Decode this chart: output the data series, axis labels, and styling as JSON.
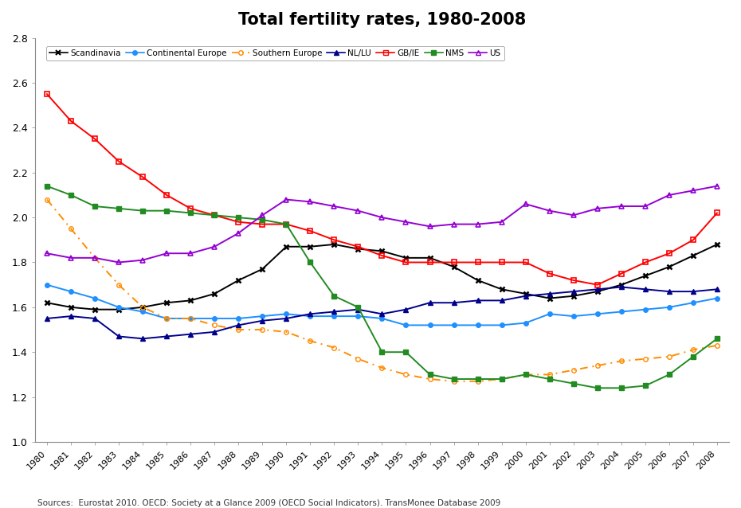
{
  "title": "Total fertility rates, 1980-2008",
  "years": [
    1980,
    1981,
    1982,
    1983,
    1984,
    1985,
    1986,
    1987,
    1988,
    1989,
    1990,
    1991,
    1992,
    1993,
    1994,
    1995,
    1996,
    1997,
    1998,
    1999,
    2000,
    2001,
    2002,
    2003,
    2004,
    2005,
    2006,
    2007,
    2008
  ],
  "series_order": [
    "Scandinavia",
    "Continental Europe",
    "Southern Europe",
    "NL/LU",
    "GB/IE",
    "NMS",
    "US"
  ],
  "series": {
    "Scandinavia": [
      1.62,
      1.6,
      1.59,
      1.59,
      1.6,
      1.62,
      1.63,
      1.66,
      1.72,
      1.77,
      1.87,
      1.87,
      1.88,
      1.86,
      1.85,
      1.82,
      1.82,
      1.78,
      1.72,
      1.68,
      1.66,
      1.64,
      1.65,
      1.67,
      1.7,
      1.74,
      1.78,
      1.83,
      1.88
    ],
    "Continental Europe": [
      1.7,
      1.67,
      1.64,
      1.6,
      1.58,
      1.55,
      1.55,
      1.55,
      1.55,
      1.56,
      1.57,
      1.56,
      1.56,
      1.56,
      1.55,
      1.52,
      1.52,
      1.52,
      1.52,
      1.52,
      1.53,
      1.57,
      1.56,
      1.57,
      1.58,
      1.59,
      1.6,
      1.62,
      1.64
    ],
    "Southern Europe": [
      2.08,
      1.95,
      1.82,
      1.7,
      1.6,
      1.55,
      1.55,
      1.52,
      1.5,
      1.5,
      1.49,
      1.45,
      1.42,
      1.37,
      1.33,
      1.3,
      1.28,
      1.27,
      1.27,
      1.28,
      1.3,
      1.3,
      1.32,
      1.34,
      1.36,
      1.37,
      1.38,
      1.41,
      1.43
    ],
    "NL/LU": [
      1.55,
      1.56,
      1.55,
      1.47,
      1.46,
      1.47,
      1.48,
      1.49,
      1.52,
      1.54,
      1.55,
      1.57,
      1.58,
      1.59,
      1.57,
      1.59,
      1.62,
      1.62,
      1.63,
      1.63,
      1.65,
      1.66,
      1.67,
      1.68,
      1.69,
      1.68,
      1.67,
      1.67,
      1.68
    ],
    "GB/IE": [
      2.55,
      2.43,
      2.35,
      2.25,
      2.18,
      2.1,
      2.04,
      2.01,
      1.98,
      1.97,
      1.97,
      1.94,
      1.9,
      1.87,
      1.83,
      1.8,
      1.8,
      1.8,
      1.8,
      1.8,
      1.8,
      1.75,
      1.72,
      1.7,
      1.75,
      1.8,
      1.84,
      1.9,
      2.02
    ],
    "NMS": [
      2.14,
      2.1,
      2.05,
      2.04,
      2.03,
      2.03,
      2.02,
      2.01,
      2.0,
      1.99,
      1.97,
      1.8,
      1.65,
      1.6,
      1.4,
      1.4,
      1.3,
      1.28,
      1.28,
      1.28,
      1.3,
      1.28,
      1.26,
      1.24,
      1.24,
      1.25,
      1.3,
      1.38,
      1.46
    ],
    "US": [
      1.84,
      1.82,
      1.82,
      1.8,
      1.81,
      1.84,
      1.84,
      1.87,
      1.93,
      2.01,
      2.08,
      2.07,
      2.05,
      2.03,
      2.0,
      1.98,
      1.96,
      1.97,
      1.97,
      1.98,
      2.06,
      2.03,
      2.01,
      2.04,
      2.05,
      2.05,
      2.1,
      2.12,
      2.14
    ]
  },
  "colors": {
    "Scandinavia": "#000000",
    "Continental Europe": "#1E90FF",
    "Southern Europe": "#FF8C00",
    "NL/LU": "#00008B",
    "GB/IE": "#FF0000",
    "NMS": "#228B22",
    "US": "#9400D3"
  },
  "ylim": [
    1.0,
    2.8
  ],
  "yticks": [
    1.0,
    1.2,
    1.4,
    1.6,
    1.8,
    2.0,
    2.2,
    2.4,
    2.6,
    2.8
  ],
  "source_text": "Sources:  Eurostat 2010. OECD: Society at a Glance 2009 (OECD Social Indicators). TransMonee Database 2009",
  "background_color": "#FFFFFF"
}
